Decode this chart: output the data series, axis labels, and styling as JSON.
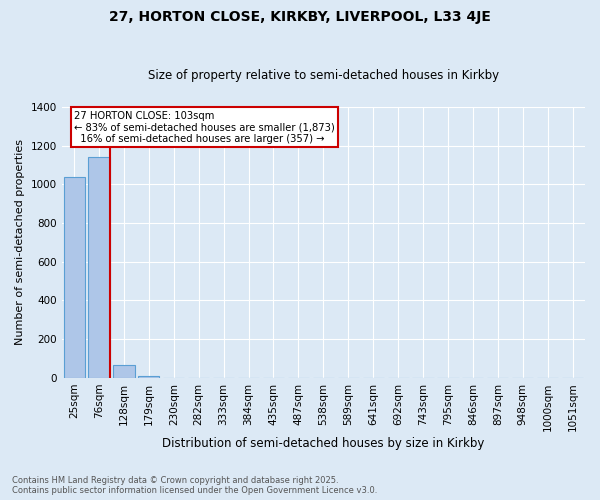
{
  "title1": "27, HORTON CLOSE, KIRKBY, LIVERPOOL, L33 4JE",
  "title2": "Size of property relative to semi-detached houses in Kirkby",
  "xlabel": "Distribution of semi-detached houses by size in Kirkby",
  "ylabel": "Number of semi-detached properties",
  "categories": [
    "25sqm",
    "76sqm",
    "128sqm",
    "179sqm",
    "230sqm",
    "282sqm",
    "333sqm",
    "384sqm",
    "435sqm",
    "487sqm",
    "538sqm",
    "589sqm",
    "641sqm",
    "692sqm",
    "743sqm",
    "795sqm",
    "846sqm",
    "897sqm",
    "948sqm",
    "1000sqm",
    "1051sqm"
  ],
  "values": [
    1035,
    1140,
    65,
    10,
    0,
    0,
    0,
    0,
    0,
    0,
    0,
    0,
    0,
    0,
    0,
    0,
    0,
    0,
    0,
    0,
    0
  ],
  "bar_color": "#aec6e8",
  "bar_edge_color": "#5a9fd4",
  "background_color": "#dce9f5",
  "grid_color": "#ffffff",
  "red_line_x": 1.42,
  "annotation_text": "27 HORTON CLOSE: 103sqm\n← 83% of semi-detached houses are smaller (1,873)\n  16% of semi-detached houses are larger (357) →",
  "annotation_box_color": "#ffffff",
  "annotation_box_edge": "#cc0000",
  "red_line_color": "#cc0000",
  "ylim": [
    0,
    1400
  ],
  "yticks": [
    0,
    200,
    400,
    600,
    800,
    1000,
    1200,
    1400
  ],
  "title1_fontsize": 10,
  "title2_fontsize": 8.5,
  "ylabel_fontsize": 8,
  "xlabel_fontsize": 8.5,
  "tick_fontsize": 7.5,
  "footnote1": "Contains HM Land Registry data © Crown copyright and database right 2025.",
  "footnote2": "Contains public sector information licensed under the Open Government Licence v3.0."
}
